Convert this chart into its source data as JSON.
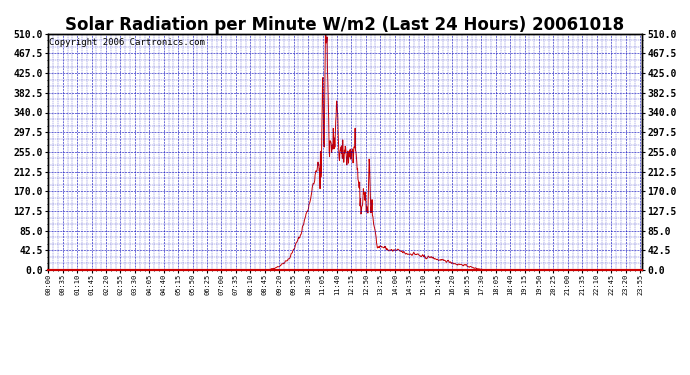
{
  "title": "Solar Radiation per Minute W/m2 (Last 24 Hours) 20061018",
  "copyright_text": "Copyright 2006 Cartronics.com",
  "line_color": "#cc0000",
  "background_color": "#ffffff",
  "plot_bg_color": "#ffffff",
  "grid_color": "#0000bb",
  "spine_color": "#000000",
  "bottom_spine_color": "#cc0000",
  "tick_color": "#000000",
  "ylim": [
    0.0,
    510.0
  ],
  "yticks": [
    0.0,
    42.5,
    85.0,
    127.5,
    170.0,
    212.5,
    255.0,
    297.5,
    340.0,
    382.5,
    425.0,
    467.5,
    510.0
  ],
  "title_fontsize": 12,
  "copyright_fontsize": 6.5,
  "xtick_interval_min": 35
}
